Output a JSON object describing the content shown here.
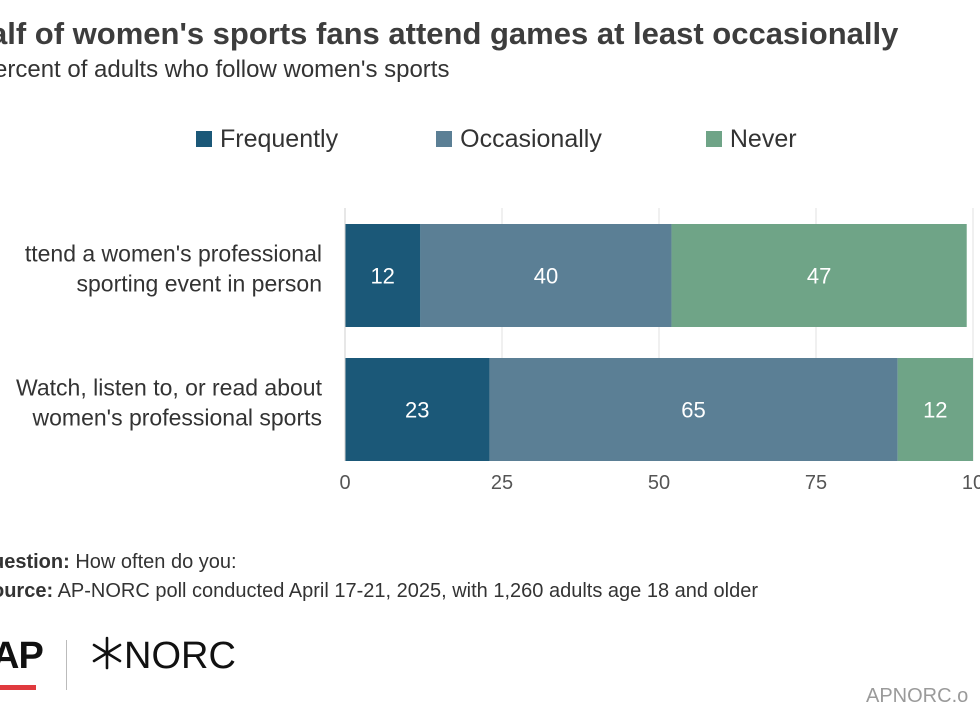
{
  "chart_data": {
    "type": "bar",
    "orientation": "horizontal",
    "stacked": true,
    "title": "alf of women's sports fans attend games at least occasionally",
    "subtitle": "ercent of adults who follow women's sports",
    "categories": [
      [
        "ttend a women's professional",
        "sporting event in person"
      ],
      [
        "Watch, listen to, or read about",
        "women's professional sports"
      ]
    ],
    "series": [
      {
        "name": "Frequently",
        "color": "#1b5878",
        "values": [
          12,
          23
        ]
      },
      {
        "name": "Occasionally",
        "color": "#5b7f95",
        "values": [
          40,
          65
        ]
      },
      {
        "name": "Never",
        "color": "#6fa487",
        "values": [
          47,
          12
        ]
      }
    ],
    "xlim": [
      0,
      100
    ],
    "xticks": [
      "0",
      "25",
      "50",
      "75",
      "10"
    ],
    "grid": true,
    "legend": "top"
  },
  "notes": {
    "question_label": "uestion:",
    "question_text": " How often do you:",
    "source_label": "ource:",
    "source_text": " AP-NORC poll conducted April 17-21, 2025, with 1,260 adults age 18 and older"
  },
  "logos": {
    "ap": "AP",
    "norc": "NORC"
  },
  "footer_url": "APNORC.o"
}
